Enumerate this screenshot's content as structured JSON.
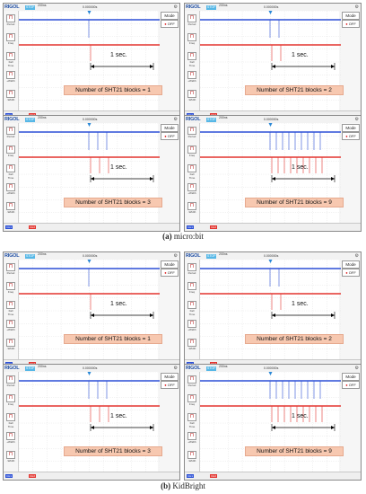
{
  "scope": {
    "brand": "RIGOL",
    "status": "STOP",
    "timebase": "200ns",
    "timebase2": "0.000000s",
    "mode_label": "Mode",
    "mode_value": "OFF",
    "ch1_label": "CH1",
    "ch2_label": "CH2",
    "sidebar": [
      "Period",
      "Freq",
      "Fall Time",
      "+Width",
      "-Width"
    ],
    "interval_label": "1 sec.",
    "colors": {
      "ch1": "#2b4fd6",
      "ch2": "#e3342f",
      "label_bg": "#f7c8b0"
    }
  },
  "panels": [
    {
      "group": "micro:bit",
      "caption": "Number of SHT21 blocks = 1",
      "blocks": 1
    },
    {
      "group": "micro:bit",
      "caption": "Number of SHT21 blocks = 2",
      "blocks": 2
    },
    {
      "group": "micro:bit",
      "caption": "Number of SHT21 blocks = 3",
      "blocks": 3
    },
    {
      "group": "micro:bit",
      "caption": "Number of SHT21 blocks = 9",
      "blocks": 9
    },
    {
      "group": "KidBright",
      "caption": "Number of SHT21 blocks = 1",
      "blocks": 1
    },
    {
      "group": "KidBright",
      "caption": "Number of SHT21 blocks = 2",
      "blocks": 2
    },
    {
      "group": "KidBright",
      "caption": "Number of SHT21 blocks = 3",
      "blocks": 3
    },
    {
      "group": "KidBright",
      "caption": "Number of SHT21 blocks = 9",
      "blocks": 9
    }
  ],
  "captions": {
    "a_letter": "(a)",
    "a_text": " micro:bit",
    "b_letter": "(b)",
    "b_text": " KidBright"
  }
}
